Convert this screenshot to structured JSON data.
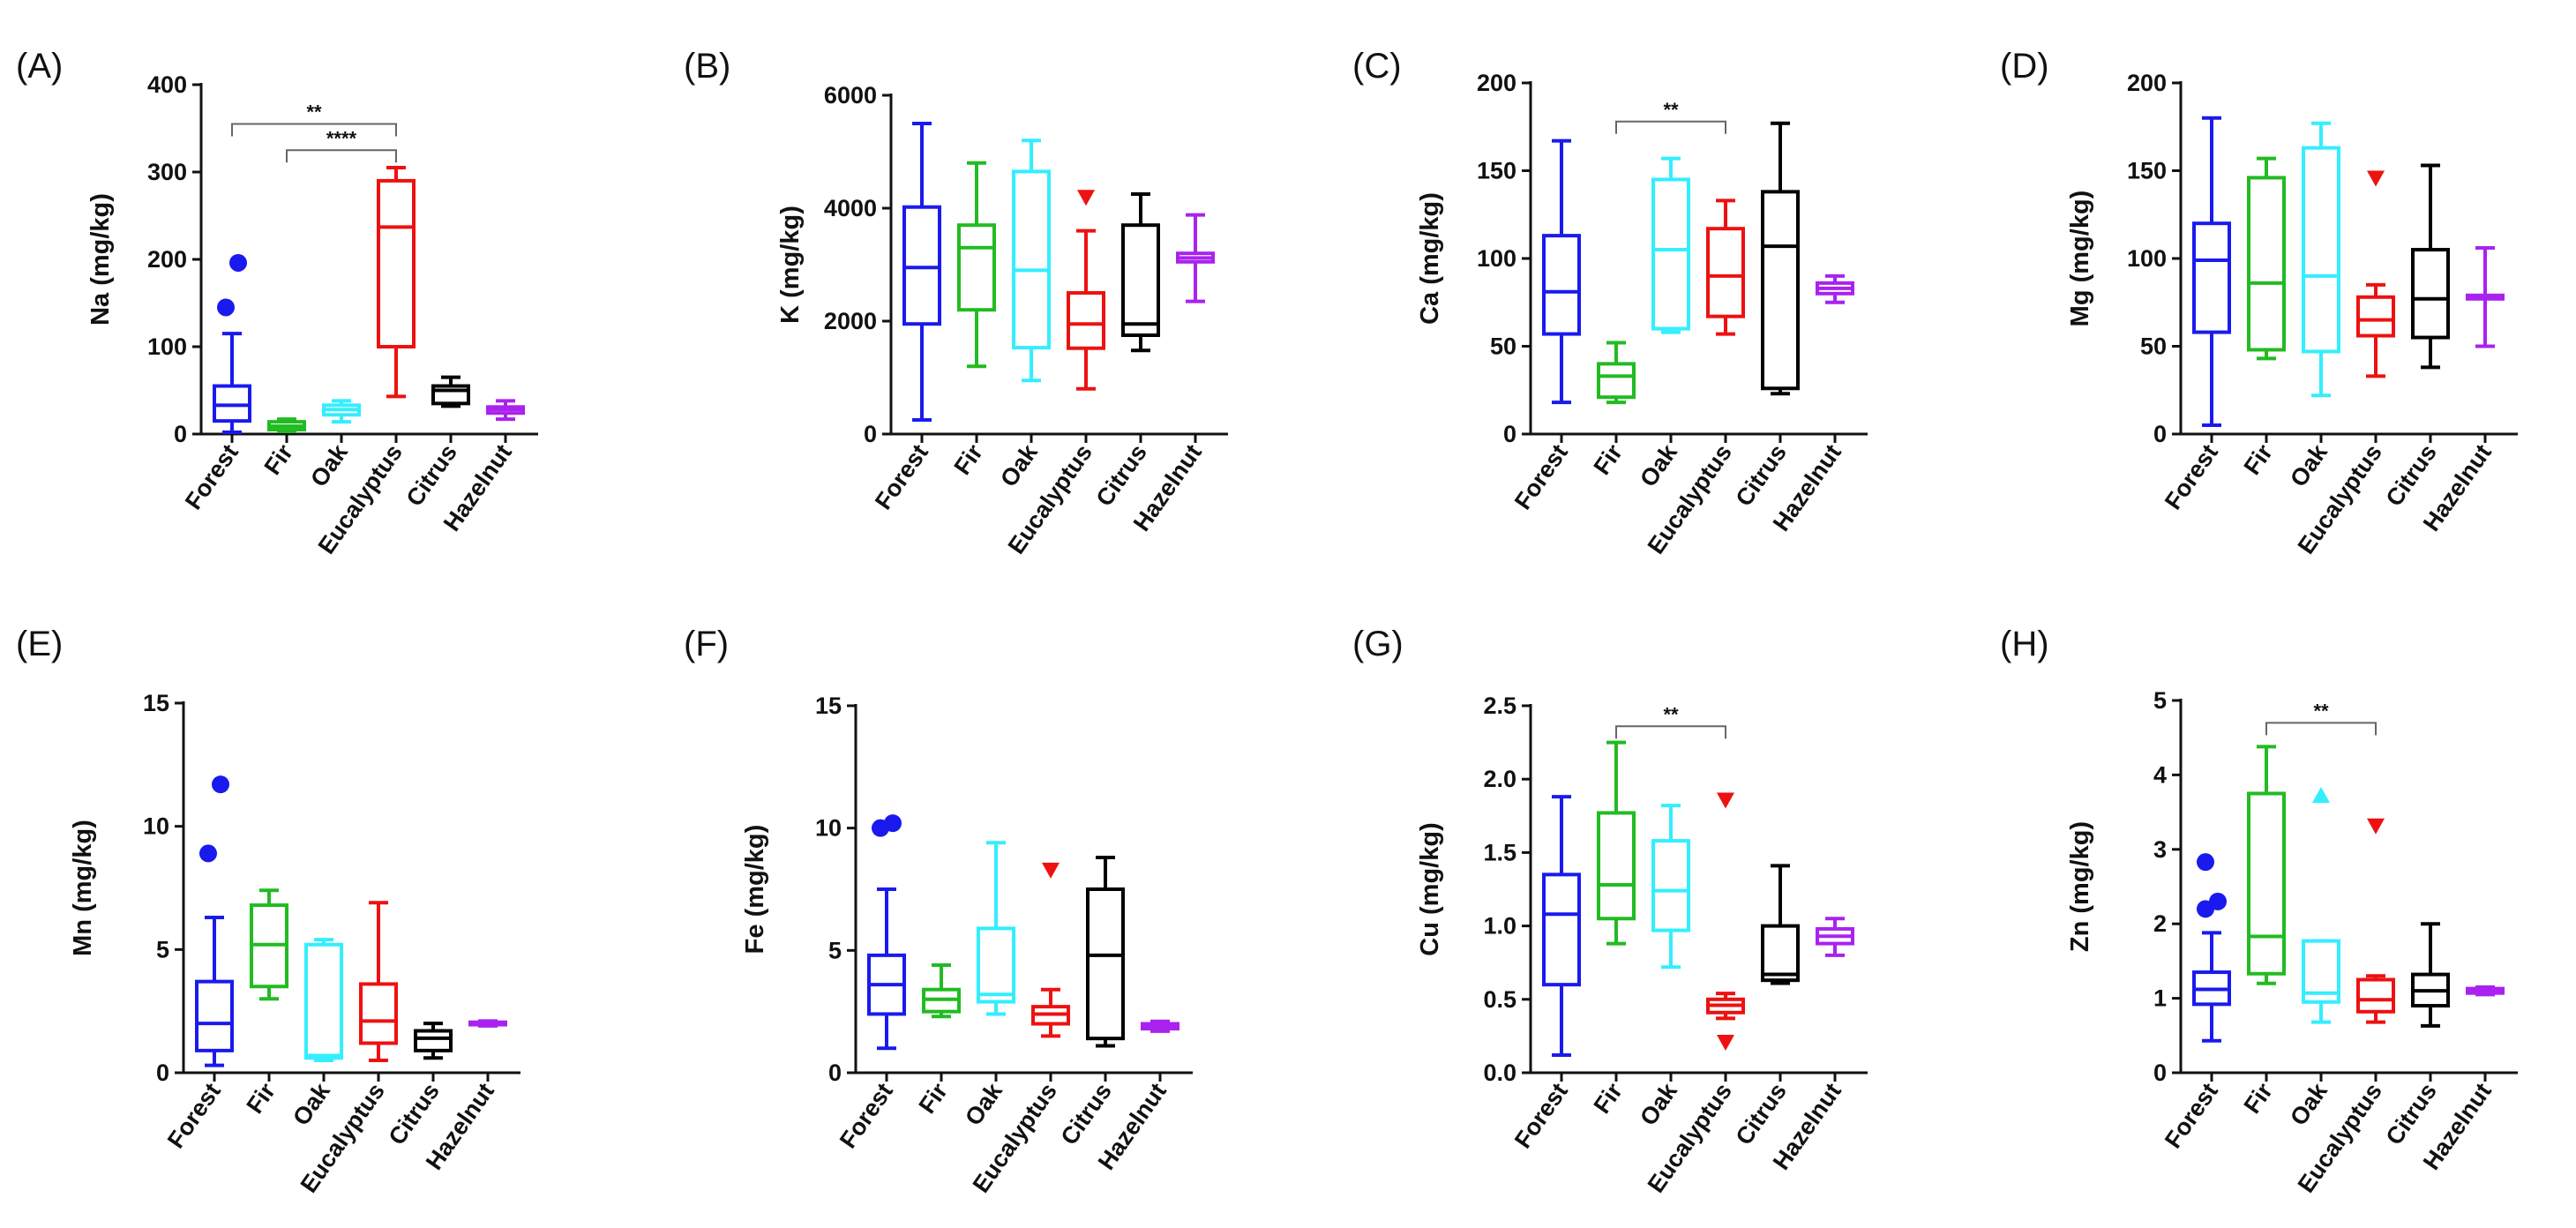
{
  "figure": {
    "categories": [
      "Forest",
      "Fir",
      "Oak",
      "Eucalyptus",
      "Citrus",
      "Hazelnut"
    ],
    "series_colors": [
      "#1a1aee",
      "#22bb22",
      "#33eeff",
      "#ee1111",
      "#000000",
      "#aa22ee"
    ]
  },
  "chart_data": [
    {
      "type": "box",
      "panel_label": "(A)",
      "ylabel": "Na (mg/kg)",
      "ylim": [
        0,
        400
      ],
      "yticks": [
        0,
        100,
        200,
        300,
        400
      ],
      "ytick_labels": [
        "0",
        "100",
        "200",
        "300",
        "400"
      ],
      "categories": [
        "Forest",
        "Fir",
        "Oak",
        "Eucalyptus",
        "Citrus",
        "Hazelnut"
      ],
      "boxes": [
        {
          "min": 2,
          "q1": 15,
          "median": 33,
          "q3": 55,
          "max": 115,
          "outliers": [
            145,
            196
          ],
          "marker": "circle"
        },
        {
          "min": 3,
          "q1": 5,
          "median": 9,
          "q3": 14,
          "max": 17,
          "outliers": [],
          "marker": "square"
        },
        {
          "min": 14,
          "q1": 22,
          "median": 28,
          "q3": 33,
          "max": 38,
          "outliers": [],
          "marker": "triangle-up"
        },
        {
          "min": 43,
          "q1": 100,
          "median": 237,
          "q3": 290,
          "max": 305,
          "outliers": [],
          "marker": "triangle-down"
        },
        {
          "min": 32,
          "q1": 35,
          "median": 50,
          "q3": 55,
          "max": 65,
          "outliers": [],
          "marker": "diamond"
        },
        {
          "min": 17,
          "q1": 24,
          "median": 28,
          "q3": 31,
          "max": 38,
          "outliers": [],
          "marker": "circle"
        }
      ],
      "significance": [
        {
          "from": "Forest",
          "to": "Eucalyptus",
          "label": "**",
          "y": 355
        },
        {
          "from": "Fir",
          "to": "Eucalyptus",
          "label": "****",
          "y": 325
        }
      ]
    },
    {
      "type": "box",
      "panel_label": "(B)",
      "ylabel": "K (mg/kg)",
      "ylim": [
        0,
        6000
      ],
      "yticks": [
        0,
        2000,
        4000,
        6000
      ],
      "ytick_labels": [
        "0",
        "2000",
        "4000",
        "6000"
      ],
      "categories": [
        "Forest",
        "Fir",
        "Oak",
        "Eucalyptus",
        "Citrus",
        "Hazelnut"
      ],
      "boxes": [
        {
          "min": 250,
          "q1": 1950,
          "median": 2950,
          "q3": 4020,
          "max": 5500,
          "outliers": [],
          "marker": "circle"
        },
        {
          "min": 1200,
          "q1": 2200,
          "median": 3300,
          "q3": 3700,
          "max": 4800,
          "outliers": [],
          "marker": "square"
        },
        {
          "min": 950,
          "q1": 1530,
          "median": 2900,
          "q3": 4650,
          "max": 5200,
          "outliers": [],
          "marker": "triangle-up"
        },
        {
          "min": 800,
          "q1": 1520,
          "median": 1950,
          "q3": 2500,
          "max": 3600,
          "outliers": [
            4200
          ],
          "marker": "triangle-down"
        },
        {
          "min": 1480,
          "q1": 1750,
          "median": 1950,
          "q3": 3700,
          "max": 4250,
          "outliers": [],
          "marker": "diamond"
        },
        {
          "min": 2350,
          "q1": 3050,
          "median": 3120,
          "q3": 3200,
          "max": 3880,
          "outliers": [],
          "marker": "circle"
        }
      ],
      "significance": []
    },
    {
      "type": "box",
      "panel_label": "(C)",
      "ylabel": "Ca (mg/kg)",
      "ylim": [
        0,
        200
      ],
      "yticks": [
        0,
        50,
        100,
        150,
        200
      ],
      "ytick_labels": [
        "0",
        "50",
        "100",
        "150",
        "200"
      ],
      "categories": [
        "Forest",
        "Fir",
        "Oak",
        "Eucalyptus",
        "Citrus",
        "Hazelnut"
      ],
      "boxes": [
        {
          "min": 18,
          "q1": 57,
          "median": 81,
          "q3": 113,
          "max": 167,
          "outliers": [],
          "marker": "circle"
        },
        {
          "min": 18,
          "q1": 21,
          "median": 33,
          "q3": 40,
          "max": 52,
          "outliers": [],
          "marker": "square"
        },
        {
          "min": 58,
          "q1": 60,
          "median": 105,
          "q3": 145,
          "max": 157,
          "outliers": [],
          "marker": "triangle-up"
        },
        {
          "min": 57,
          "q1": 67,
          "median": 90,
          "q3": 117,
          "max": 133,
          "outliers": [],
          "marker": "triangle-down"
        },
        {
          "min": 23,
          "q1": 26,
          "median": 107,
          "q3": 138,
          "max": 177,
          "outliers": [],
          "marker": "diamond"
        },
        {
          "min": 75,
          "q1": 80,
          "median": 83,
          "q3": 86,
          "max": 90,
          "outliers": [],
          "marker": "circle"
        }
      ],
      "significance": [
        {
          "from": "Fir",
          "to": "Eucalyptus",
          "label": "**",
          "y": 178
        }
      ]
    },
    {
      "type": "box",
      "panel_label": "(D)",
      "ylabel": "Mg (mg/kg)",
      "ylim": [
        0,
        200
      ],
      "yticks": [
        0,
        50,
        100,
        150,
        200
      ],
      "ytick_labels": [
        "0",
        "50",
        "100",
        "150",
        "200"
      ],
      "categories": [
        "Forest",
        "Fir",
        "Oak",
        "Eucalyptus",
        "Citrus",
        "Hazelnut"
      ],
      "boxes": [
        {
          "min": 5,
          "q1": 58,
          "median": 99,
          "q3": 120,
          "max": 180,
          "outliers": [],
          "marker": "circle"
        },
        {
          "min": 43,
          "q1": 48,
          "median": 86,
          "q3": 146,
          "max": 157,
          "outliers": [],
          "marker": "square"
        },
        {
          "min": 22,
          "q1": 47,
          "median": 90,
          "q3": 163,
          "max": 177,
          "outliers": [],
          "marker": "triangle-up"
        },
        {
          "min": 33,
          "q1": 56,
          "median": 65,
          "q3": 78,
          "max": 85,
          "outliers": [
            146
          ],
          "marker": "triangle-down"
        },
        {
          "min": 38,
          "q1": 55,
          "median": 77,
          "q3": 105,
          "max": 153,
          "outliers": [],
          "marker": "diamond"
        },
        {
          "min": 50,
          "q1": 77,
          "median": 78,
          "q3": 79,
          "max": 106,
          "outliers": [],
          "marker": "circle"
        }
      ],
      "significance": []
    },
    {
      "type": "box",
      "panel_label": "(E)",
      "ylabel": "Mn (mg/kg)",
      "ylim": [
        0,
        15
      ],
      "yticks": [
        0,
        5,
        10,
        15
      ],
      "ytick_labels": [
        "0",
        "5",
        "10",
        "15"
      ],
      "categories": [
        "Forest",
        "Fir",
        "Oak",
        "Eucalyptus",
        "Citrus",
        "Hazelnut"
      ],
      "boxes": [
        {
          "min": 0.3,
          "q1": 0.9,
          "median": 2.0,
          "q3": 3.7,
          "max": 6.3,
          "outliers": [
            8.9,
            11.7
          ],
          "marker": "circle"
        },
        {
          "min": 3.0,
          "q1": 3.5,
          "median": 5.2,
          "q3": 6.8,
          "max": 7.4,
          "outliers": [],
          "marker": "square"
        },
        {
          "min": 0.5,
          "q1": 0.6,
          "median": 0.7,
          "q3": 5.2,
          "max": 5.4,
          "outliers": [],
          "marker": "triangle-up"
        },
        {
          "min": 0.5,
          "q1": 1.2,
          "median": 2.1,
          "q3": 3.6,
          "max": 6.9,
          "outliers": [],
          "marker": "triangle-down"
        },
        {
          "min": 0.6,
          "q1": 0.9,
          "median": 1.4,
          "q3": 1.7,
          "max": 2.0,
          "outliers": [],
          "marker": "diamond"
        },
        {
          "min": 1.9,
          "q1": 1.95,
          "median": 2.0,
          "q3": 2.05,
          "max": 2.1,
          "outliers": [],
          "marker": "circle"
        }
      ],
      "significance": []
    },
    {
      "type": "box",
      "panel_label": "(F)",
      "ylabel": "Fe (mg/kg)",
      "ylim": [
        0,
        15
      ],
      "yticks": [
        0,
        5,
        10,
        15
      ],
      "ytick_labels": [
        "0",
        "5",
        "10",
        "15"
      ],
      "categories": [
        "Forest",
        "Fir",
        "Oak",
        "Eucalyptus",
        "Citrus",
        "Hazelnut"
      ],
      "boxes": [
        {
          "min": 1.0,
          "q1": 2.4,
          "median": 3.6,
          "q3": 4.8,
          "max": 7.5,
          "outliers": [
            10.0,
            10.2
          ],
          "marker": "circle"
        },
        {
          "min": 2.3,
          "q1": 2.5,
          "median": 3.0,
          "q3": 3.4,
          "max": 4.4,
          "outliers": [],
          "marker": "square"
        },
        {
          "min": 2.4,
          "q1": 2.9,
          "median": 3.2,
          "q3": 5.9,
          "max": 9.4,
          "outliers": [],
          "marker": "triangle-up"
        },
        {
          "min": 1.5,
          "q1": 2.0,
          "median": 2.4,
          "q3": 2.7,
          "max": 3.4,
          "outliers": [
            8.3
          ],
          "marker": "triangle-down"
        },
        {
          "min": 1.1,
          "q1": 1.4,
          "median": 4.8,
          "q3": 7.5,
          "max": 8.8,
          "outliers": [],
          "marker": "diamond"
        },
        {
          "min": 1.7,
          "q1": 1.8,
          "median": 1.9,
          "q3": 2.0,
          "max": 2.1,
          "outliers": [],
          "marker": "circle"
        }
      ],
      "significance": []
    },
    {
      "type": "box",
      "panel_label": "(G)",
      "ylabel": "Cu (mg/kg)",
      "ylim": [
        0,
        2.5
      ],
      "yticks": [
        0,
        0.5,
        1.0,
        1.5,
        2.0,
        2.5
      ],
      "ytick_labels": [
        "0.0",
        "0.5",
        "1.0",
        "1.5",
        "2.0",
        "2.5"
      ],
      "categories": [
        "Forest",
        "Fir",
        "Oak",
        "Eucalyptus",
        "Citrus",
        "Hazelnut"
      ],
      "boxes": [
        {
          "min": 0.12,
          "q1": 0.6,
          "median": 1.08,
          "q3": 1.35,
          "max": 1.88,
          "outliers": [],
          "marker": "circle"
        },
        {
          "min": 0.88,
          "q1": 1.05,
          "median": 1.28,
          "q3": 1.77,
          "max": 2.25,
          "outliers": [],
          "marker": "square"
        },
        {
          "min": 0.72,
          "q1": 0.97,
          "median": 1.24,
          "q3": 1.58,
          "max": 1.82,
          "outliers": [],
          "marker": "triangle-up"
        },
        {
          "min": 0.37,
          "q1": 0.41,
          "median": 0.46,
          "q3": 0.5,
          "max": 0.54,
          "outliers": [
            0.21,
            1.86
          ],
          "marker": "triangle-down"
        },
        {
          "min": 0.61,
          "q1": 0.63,
          "median": 0.67,
          "q3": 1.0,
          "max": 1.41,
          "outliers": [],
          "marker": "diamond"
        },
        {
          "min": 0.8,
          "q1": 0.88,
          "median": 0.93,
          "q3": 0.98,
          "max": 1.05,
          "outliers": [],
          "marker": "circle"
        }
      ],
      "significance": [
        {
          "from": "Fir",
          "to": "Eucalyptus",
          "label": "**",
          "y": 2.36
        }
      ]
    },
    {
      "type": "box",
      "panel_label": "(H)",
      "ylabel": "Zn (mg/kg)",
      "ylim": [
        0,
        5
      ],
      "yticks": [
        0,
        1,
        2,
        3,
        4,
        5
      ],
      "ytick_labels": [
        "0",
        "1",
        "2",
        "3",
        "4",
        "5"
      ],
      "categories": [
        "Forest",
        "Fir",
        "Oak",
        "Eucalyptus",
        "Citrus",
        "Hazelnut"
      ],
      "boxes": [
        {
          "min": 0.43,
          "q1": 0.92,
          "median": 1.12,
          "q3": 1.35,
          "max": 1.88,
          "outliers": [
            2.2,
            2.3,
            2.83
          ],
          "marker": "circle"
        },
        {
          "min": 1.2,
          "q1": 1.33,
          "median": 1.83,
          "q3": 3.75,
          "max": 4.38,
          "outliers": [],
          "marker": "square"
        },
        {
          "min": 0.68,
          "q1": 0.95,
          "median": 1.07,
          "q3": 1.77,
          "max": 1.77,
          "outliers": [
            3.72
          ],
          "marker": "triangle-up"
        },
        {
          "min": 0.68,
          "q1": 0.82,
          "median": 0.98,
          "q3": 1.25,
          "max": 1.3,
          "outliers": [
            3.32
          ],
          "marker": "triangle-down"
        },
        {
          "min": 0.63,
          "q1": 0.9,
          "median": 1.1,
          "q3": 1.32,
          "max": 2.0,
          "outliers": [],
          "marker": "diamond"
        },
        {
          "min": 1.05,
          "q1": 1.07,
          "median": 1.1,
          "q3": 1.13,
          "max": 1.15,
          "outliers": [],
          "marker": "circle"
        }
      ],
      "significance": [
        {
          "from": "Fir",
          "to": "Eucalyptus",
          "label": "**",
          "y": 4.7
        }
      ]
    }
  ]
}
